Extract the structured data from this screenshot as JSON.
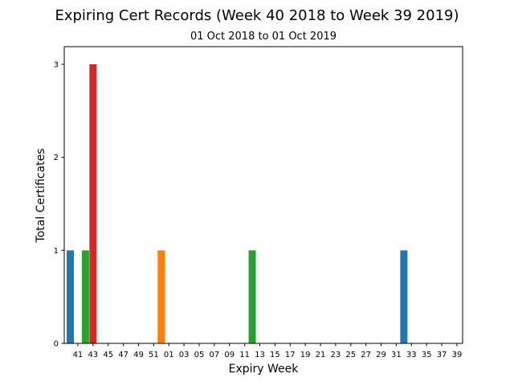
{
  "chart_data": {
    "type": "bar",
    "title": "Expiring Cert Records (Week 40 2018 to Week 39 2019)",
    "subtitle": "01 Oct 2018 to 01 Oct 2019",
    "xlabel": "Expiry Week",
    "ylabel": "Total Certificates",
    "ylim": [
      0,
      3.19
    ],
    "yticks": [
      0,
      1,
      2,
      3
    ],
    "xtick_labels": [
      "41",
      "43",
      "45",
      "47",
      "49",
      "51",
      "01",
      "03",
      "05",
      "07",
      "09",
      "11",
      "13",
      "15",
      "17",
      "19",
      "21",
      "23",
      "25",
      "27",
      "29",
      "31",
      "33",
      "35",
      "37",
      "39"
    ],
    "bars": [
      {
        "week": "40",
        "value": 1,
        "color": "#1f77b4"
      },
      {
        "week": "42",
        "value": 1,
        "color": "#2ca02c"
      },
      {
        "week": "43",
        "value": 3,
        "color": "#d62728"
      },
      {
        "week": "52",
        "value": 1,
        "color": "#ff7f0e"
      },
      {
        "week": "12",
        "value": 1,
        "color": "#2ca02c"
      },
      {
        "week": "32",
        "value": 1,
        "color": "#1f77b4"
      }
    ],
    "grid": false,
    "legend": "none"
  }
}
